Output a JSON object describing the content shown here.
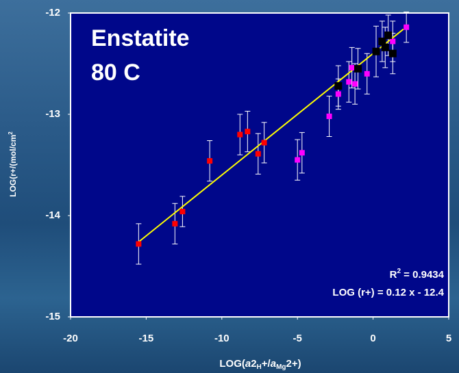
{
  "chart_data": {
    "type": "scatter",
    "title": "Enstatite",
    "subtitle": "80 C",
    "xlabel": [
      "LOG(",
      "a",
      "2",
      "H",
      "+/",
      "a",
      "Mg",
      "2+)"
    ],
    "ylabel": [
      "LOG(r+/(mol/cm",
      "2"
    ],
    "xlim": [
      -20,
      5
    ],
    "ylim": [
      -15,
      -12
    ],
    "xticks": [
      -20,
      -15,
      -10,
      -5,
      0,
      5
    ],
    "yticks": [
      -12,
      -13,
      -14,
      -15
    ],
    "series": [
      {
        "color": "#ff0000",
        "x": [
          -15.5,
          -13.1,
          -12.6,
          -10.8,
          -8.8,
          -8.3,
          -7.6,
          -7.2
        ],
        "values": [
          -14.28,
          -14.08,
          -13.96,
          -13.46,
          -13.2,
          -13.17,
          -13.39,
          -13.28
        ],
        "errors": [
          0.2,
          0.2,
          0.15,
          0.2,
          0.2,
          0.2,
          0.2,
          0.2
        ]
      },
      {
        "color": "#ff00ff",
        "x": [
          -5.0,
          -4.7,
          -2.9,
          -2.3,
          -1.6,
          -1.4,
          -1.2,
          -0.4,
          1.3,
          2.2
        ],
        "values": [
          -13.45,
          -13.38,
          -13.02,
          -12.8,
          -12.68,
          -12.54,
          -12.7,
          -12.6,
          -12.28,
          -12.14
        ],
        "errors": [
          0.2,
          0.2,
          0.2,
          0.15,
          0.2,
          0.2,
          0.2,
          0.2,
          0.2,
          0.15
        ]
      },
      {
        "color": "#000000",
        "x": [
          -2.3,
          -1.0,
          0.2,
          0.6,
          0.8,
          1.0,
          1.3
        ],
        "values": [
          -12.72,
          -12.55,
          -12.38,
          -12.28,
          -12.34,
          -12.22,
          -12.4
        ],
        "errors": [
          0.2,
          0.2,
          0.25,
          0.2,
          0.2,
          0.2,
          0.2
        ]
      }
    ],
    "trendline": {
      "color": "#ffff00",
      "x": [
        -15.5,
        2.0
      ],
      "values": [
        -14.26,
        -12.16
      ]
    },
    "r2": [
      "R",
      "2",
      " = 0.9434"
    ],
    "equation": "LOG (r+) = 0.12 x - 12.4"
  }
}
